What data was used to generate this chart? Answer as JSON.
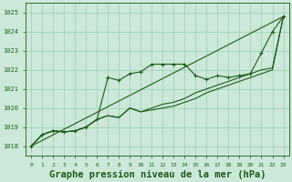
{
  "background_color": "#cce8d8",
  "grid_color": "#99ccb3",
  "line_color": "#1a5c1a",
  "title": "Graphe pression niveau de la mer (hPa)",
  "title_fontsize": 7.5,
  "ylim": [
    1017.5,
    1025.5
  ],
  "xlim": [
    -0.5,
    23.5
  ],
  "yticks": [
    1018,
    1019,
    1020,
    1021,
    1022,
    1023,
    1024,
    1025
  ],
  "xticks": [
    0,
    1,
    2,
    3,
    4,
    5,
    6,
    7,
    8,
    9,
    10,
    11,
    12,
    13,
    14,
    15,
    16,
    17,
    18,
    19,
    20,
    21,
    22,
    23
  ],
  "line_straight": {
    "x": [
      0,
      23
    ],
    "y": [
      1018.0,
      1024.8
    ]
  },
  "line_marked_main": {
    "x": [
      0,
      1,
      2,
      3,
      4,
      5,
      6,
      7,
      8,
      9,
      10,
      11,
      12,
      13,
      14,
      15,
      16,
      17,
      18,
      19,
      20,
      21,
      22,
      23
    ],
    "y": [
      1018.0,
      1018.6,
      1018.8,
      1018.75,
      1018.8,
      1019.0,
      1019.4,
      1021.6,
      1021.45,
      1021.8,
      1021.9,
      1022.3,
      1022.3,
      1022.3,
      1022.3,
      1021.7,
      1021.5,
      1021.7,
      1021.6,
      1021.7,
      1021.8,
      1022.9,
      1024.0,
      1024.8
    ]
  },
  "line_marked_second": {
    "x": [
      0,
      1,
      2,
      3,
      4,
      5,
      6,
      7,
      8,
      9,
      10,
      11,
      12,
      13,
      14,
      15,
      16,
      17,
      18,
      19,
      20,
      21,
      22,
      23
    ],
    "y": [
      1018.0,
      1018.6,
      1018.8,
      1018.75,
      1018.8,
      1019.0,
      1019.4,
      1019.6,
      1019.5,
      1020.0,
      1019.8,
      1019.9,
      1020.0,
      1020.1,
      1020.3,
      1020.5,
      1020.8,
      1021.0,
      1021.2,
      1021.4,
      1021.6,
      1021.8,
      1022.0,
      1024.8
    ]
  },
  "line_smooth": {
    "x": [
      0,
      1,
      2,
      3,
      4,
      5,
      6,
      7,
      8,
      9,
      10,
      11,
      12,
      13,
      14,
      15,
      16,
      17,
      18,
      19,
      20,
      21,
      22,
      23
    ],
    "y": [
      1018.0,
      1018.6,
      1018.8,
      1018.75,
      1018.8,
      1019.0,
      1019.4,
      1019.6,
      1019.5,
      1020.0,
      1019.8,
      1020.0,
      1020.2,
      1020.3,
      1020.5,
      1020.8,
      1021.0,
      1021.2,
      1021.4,
      1021.6,
      1021.8,
      1022.0,
      1022.1,
      1024.8
    ]
  }
}
